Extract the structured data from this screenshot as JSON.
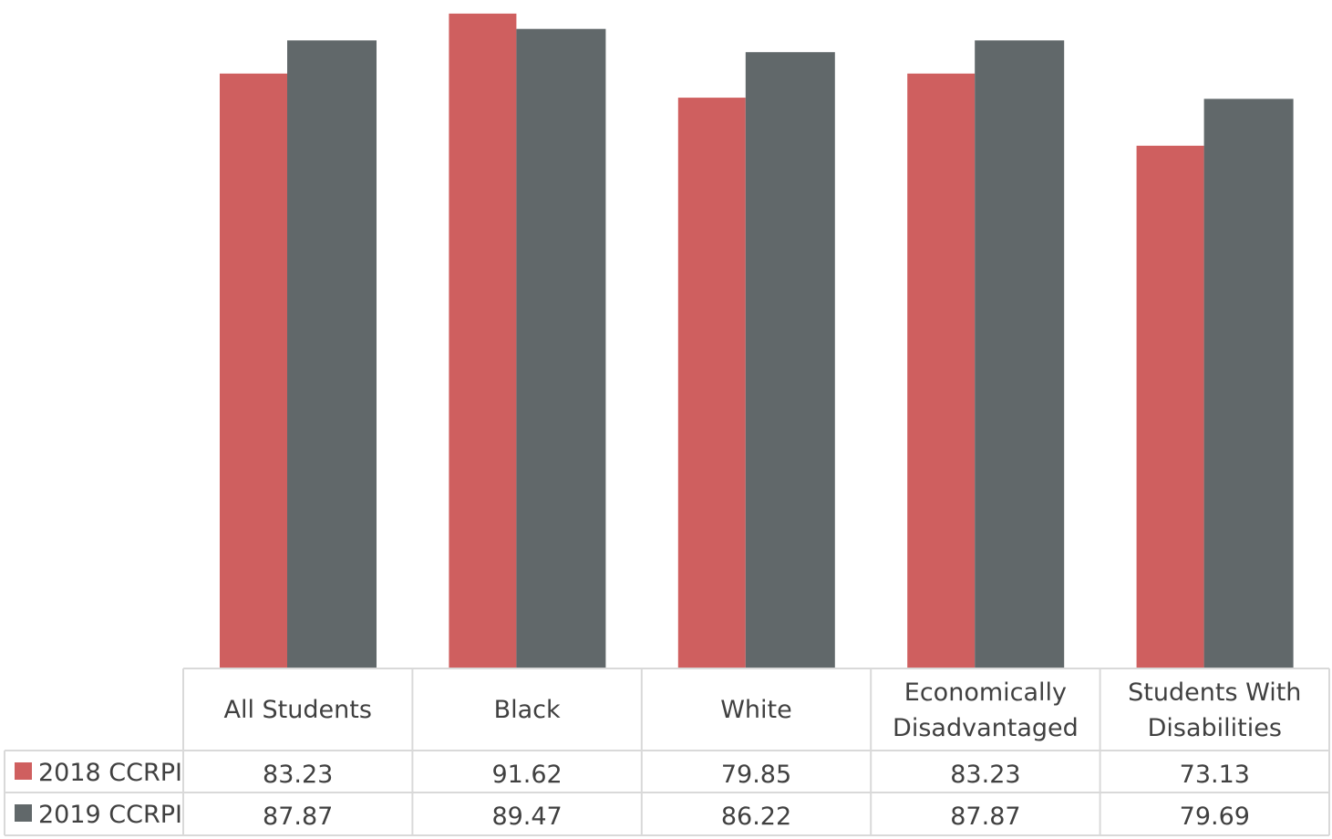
{
  "chart_data": {
    "type": "bar",
    "categories": [
      "All Students",
      "Black",
      "White",
      "Economically Disadvantaged",
      "Students With Disabilities"
    ],
    "category_lines": [
      [
        "All Students"
      ],
      [
        "Black"
      ],
      [
        "White"
      ],
      [
        "Economically",
        "Disadvantaged"
      ],
      [
        "Students With",
        "Disabilities"
      ]
    ],
    "series": [
      {
        "name": "2018 CCRPI",
        "color": "#cf5f5f",
        "values": [
          83.23,
          91.62,
          79.85,
          83.23,
          73.13
        ],
        "labels": [
          "83.23",
          "91.62",
          "79.85",
          "83.23",
          "73.13"
        ]
      },
      {
        "name": "2019 CCRPI",
        "color": "#61686a",
        "values": [
          87.87,
          89.47,
          86.22,
          87.87,
          79.69
        ],
        "labels": [
          "87.87",
          "89.47",
          "86.22",
          "87.87",
          "79.69"
        ]
      }
    ],
    "title": "",
    "xlabel": "",
    "ylabel": "",
    "ylim": [
      0,
      92.5
    ],
    "grid": false,
    "legend": "data-table"
  }
}
